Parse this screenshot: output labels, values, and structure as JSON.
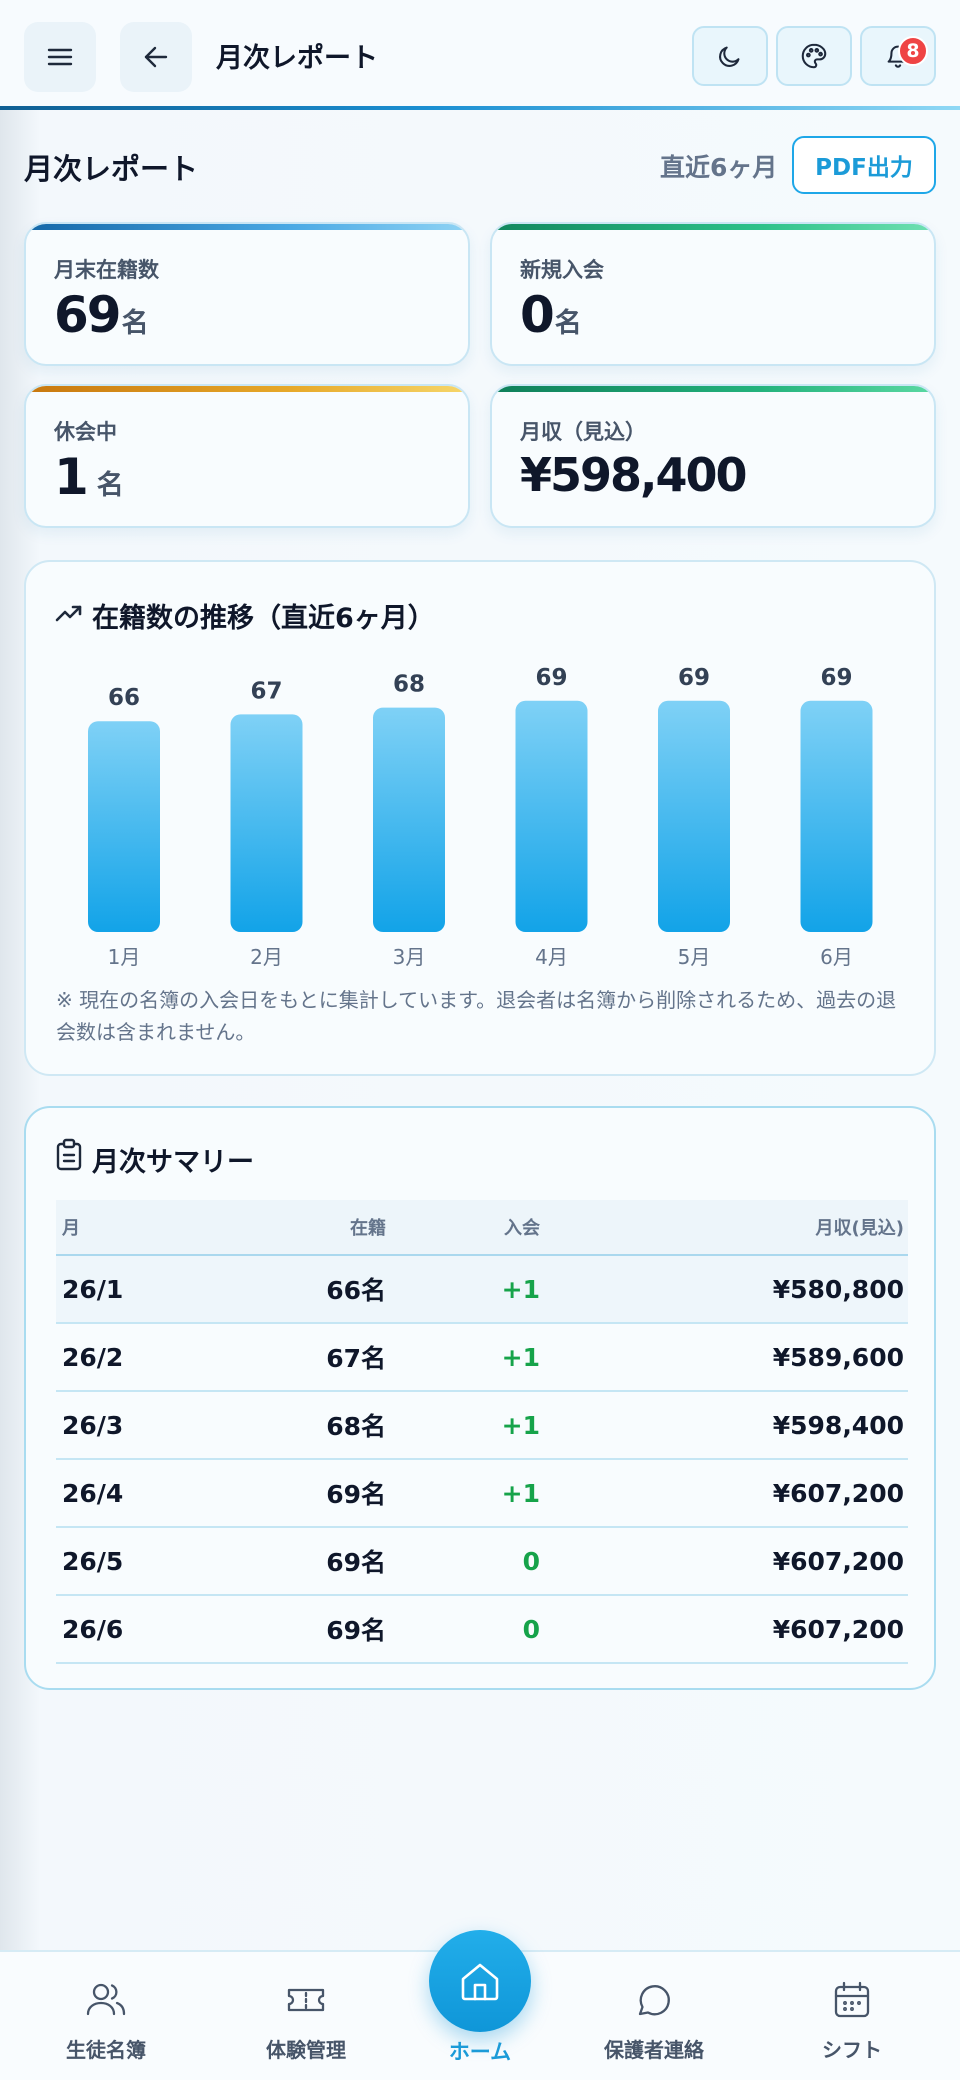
{
  "header": {
    "title": "月次レポート",
    "notification_count": "8",
    "icons": [
      "menu-icon",
      "back-arrow-icon",
      "moon-icon",
      "palette-icon",
      "bell-icon"
    ]
  },
  "page": {
    "title": "月次レポート",
    "period": "直近6ヶ月",
    "pdf_button": "PDF出力"
  },
  "stats": [
    {
      "label": "月末在籍数",
      "value": "69",
      "unit": "名",
      "accent": "#2f8fd0"
    },
    {
      "label": "新規入会",
      "value": "0",
      "unit": "名",
      "accent": "#22b37a"
    },
    {
      "label": "休会中",
      "value": "1",
      "unit": "名",
      "accent": "#e0a21c"
    },
    {
      "label": "月収（見込）",
      "value": "¥598,400",
      "unit": "",
      "accent": "#18a875"
    }
  ],
  "chart": {
    "title": "在籍数の推移（直近6ヶ月）",
    "note": "※ 現在の名簿の入会日をもとに集計しています。退会者は名簿から削除されるため、過去の退会数は含まれません。"
  },
  "chart_data": {
    "type": "bar",
    "categories": [
      "1月",
      "2月",
      "3月",
      "4月",
      "5月",
      "6月"
    ],
    "values": [
      66,
      67,
      68,
      69,
      69,
      69
    ],
    "title": "在籍数の推移（直近6ヶ月）",
    "xlabel": "",
    "ylabel": "",
    "grid": false,
    "bar_color": "#1aa8ea"
  },
  "summary": {
    "title": "月次サマリー",
    "columns": [
      "月",
      "在籍",
      "入会",
      "月収(見込)"
    ],
    "rows": [
      {
        "month": "26/1",
        "enrolled": "66名",
        "joined": "+1",
        "revenue": "¥580,800"
      },
      {
        "month": "26/2",
        "enrolled": "67名",
        "joined": "+1",
        "revenue": "¥589,600"
      },
      {
        "month": "26/3",
        "enrolled": "68名",
        "joined": "+1",
        "revenue": "¥598,400"
      },
      {
        "month": "26/4",
        "enrolled": "69名",
        "joined": "+1",
        "revenue": "¥607,200"
      },
      {
        "month": "26/5",
        "enrolled": "69名",
        "joined": "0",
        "revenue": "¥607,200"
      },
      {
        "month": "26/6",
        "enrolled": "69名",
        "joined": "0",
        "revenue": "¥607,200"
      }
    ]
  },
  "nav": {
    "items": [
      {
        "label": "生徒名簿",
        "icon": "users-icon"
      },
      {
        "label": "体験管理",
        "icon": "ticket-icon"
      },
      {
        "label": "ホーム",
        "icon": "home-icon"
      },
      {
        "label": "保護者連絡",
        "icon": "chat-icon"
      },
      {
        "label": "シフト",
        "icon": "calendar-icon"
      }
    ]
  },
  "colors": {
    "accent": "#1b9bd8",
    "positive": "#16a34a",
    "badge": "#ef4444"
  }
}
